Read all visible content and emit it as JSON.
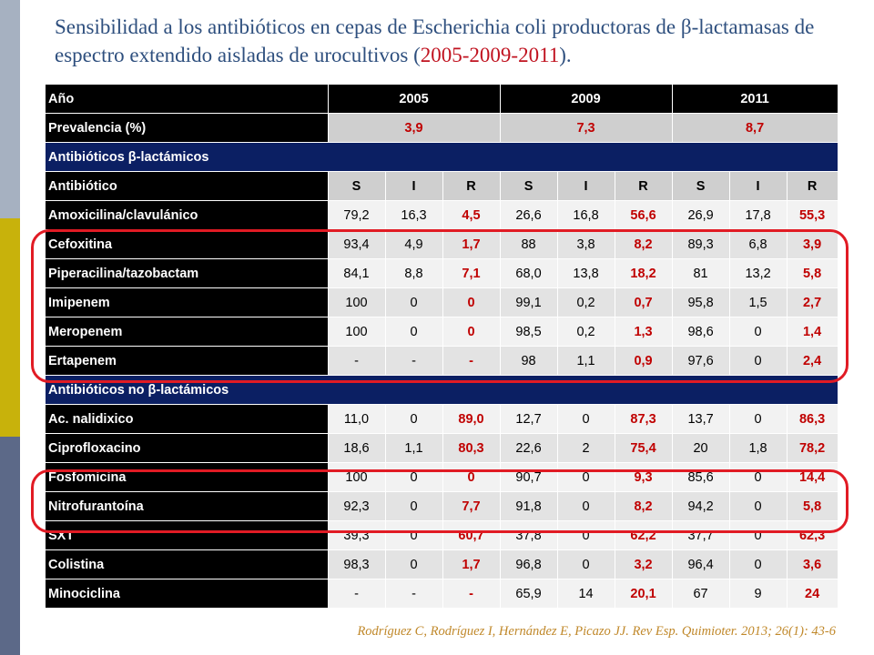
{
  "title": {
    "text": "Sensibilidad a los antibióticos en cepas de Escherichia coli productoras de  β-lactamasas de espectro extendido aisladas de urocultivos (",
    "years": "2005-2009-2011",
    "end": ")."
  },
  "table": {
    "header": {
      "label": "Año",
      "years": [
        "2005",
        "2009",
        "2011"
      ]
    },
    "prevalence": {
      "label": "Prevalencia (%)",
      "values": [
        "3,9",
        "7,3",
        "8,7"
      ]
    },
    "section_beta": "Antibióticos β-lactámicos",
    "sir": {
      "label": "Antibiótico",
      "cols": [
        "S",
        "I",
        "R",
        "S",
        "I",
        "R",
        "S",
        "I",
        "R"
      ]
    },
    "beta_rows": [
      {
        "name": "Amoxicilina/clavulánico",
        "cells": [
          "79,2",
          "16,3",
          "4,5",
          "26,6",
          "16,8",
          "56,6",
          "26,9",
          "17,8",
          "55,3"
        ]
      },
      {
        "name": "Cefoxitina",
        "cells": [
          "93,4",
          "4,9",
          "1,7",
          "88",
          "3,8",
          "8,2",
          "89,3",
          "6,8",
          "3,9"
        ]
      },
      {
        "name": "Piperacilina/tazobactam",
        "cells": [
          "84,1",
          "8,8",
          "7,1",
          "68,0",
          "13,8",
          "18,2",
          "81",
          "13,2",
          "5,8"
        ]
      },
      {
        "name": "Imipenem",
        "cells": [
          "100",
          "0",
          "0",
          "99,1",
          "0,2",
          "0,7",
          "95,8",
          "1,5",
          "2,7"
        ]
      },
      {
        "name": "Meropenem",
        "cells": [
          "100",
          "0",
          "0",
          "98,5",
          "0,2",
          "1,3",
          "98,6",
          "0",
          "1,4"
        ]
      },
      {
        "name": "Ertapenem",
        "cells": [
          "-",
          "-",
          "-",
          "98",
          "1,1",
          "0,9",
          "97,6",
          "0",
          "2,4"
        ]
      }
    ],
    "section_nonbeta": "Antibióticos no β-lactámicos",
    "nonbeta_rows": [
      {
        "name": "Ac. nalidixico",
        "cells": [
          "11,0",
          "0",
          "89,0",
          "12,7",
          "0",
          "87,3",
          "13,7",
          "0",
          "86,3"
        ]
      },
      {
        "name": "Ciprofloxacino",
        "cells": [
          "18,6",
          "1,1",
          "80,3",
          "22,6",
          "2",
          "75,4",
          "20",
          "1,8",
          "78,2"
        ]
      },
      {
        "name": "Fosfomicina",
        "cells": [
          "100",
          "0",
          "0",
          "90,7",
          "0",
          "9,3",
          "85,6",
          "0",
          "14,4"
        ]
      },
      {
        "name": "Nitrofurantoína",
        "cells": [
          "92,3",
          "0",
          "7,7",
          "91,8",
          "0",
          "8,2",
          "94,2",
          "0",
          "5,8"
        ]
      },
      {
        "name": "SXT",
        "cells": [
          "39,3",
          "0",
          "60,7",
          "37,8",
          "0",
          "62,2",
          "37,7",
          "0",
          "62,3"
        ]
      },
      {
        "name": "Colistina",
        "cells": [
          "98,3",
          "0",
          "1,7",
          "96,8",
          "0",
          "3,2",
          "96,4",
          "0",
          "3,6"
        ]
      },
      {
        "name": "Minociclina",
        "cells": [
          "-",
          "-",
          "-",
          "65,9",
          "14",
          "20,1",
          "67",
          "9",
          "24"
        ]
      }
    ]
  },
  "citation": "Rodríguez C, Rodríguez  I, Hernández E, Picazo JJ. Rev Esp. Quimioter. 2013; 26(1): 43-6",
  "colors": {
    "title": "#2e4f7e",
    "accent_red": "#c00000",
    "section_blue": "#0b1f63",
    "highlight_oval": "#e11b24",
    "citation": "#c0882a"
  }
}
